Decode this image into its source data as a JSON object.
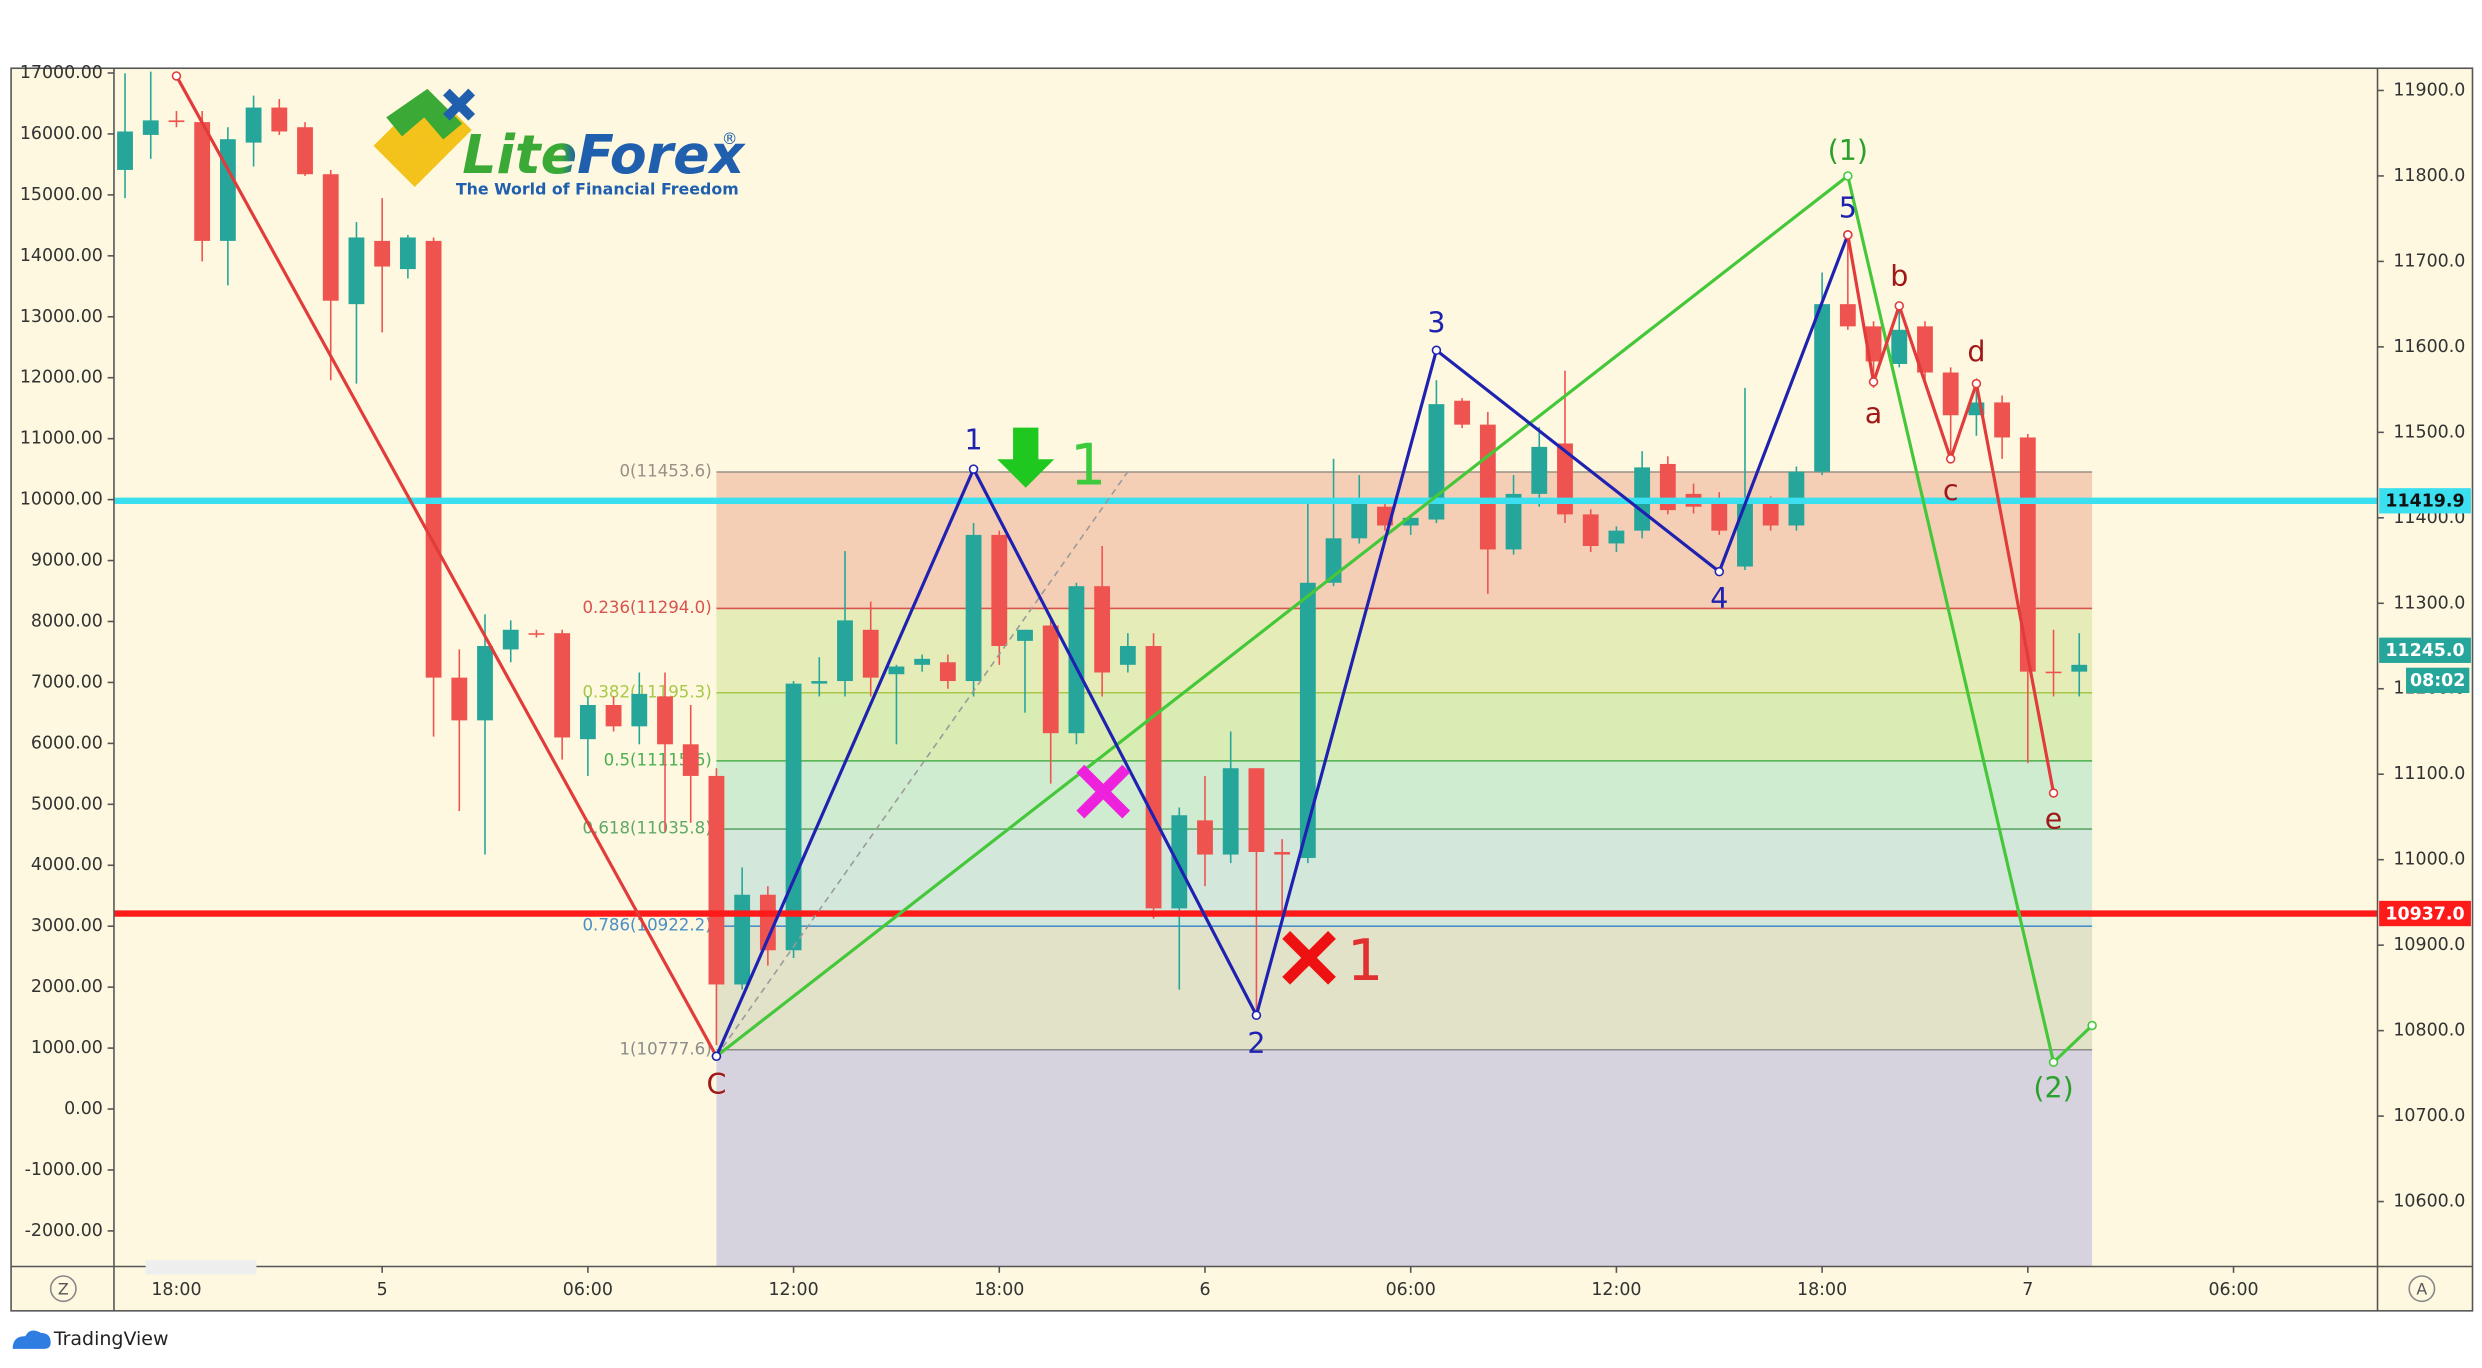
{
  "chart_data": {
    "type": "candlestick",
    "bull_color": "#26a69a",
    "bear_color": "#ef5350",
    "candles": {
      "open": [
        11807,
        11848,
        11865,
        11863,
        11724,
        11839,
        11880,
        11857,
        11802,
        11650,
        11724,
        11691,
        11724,
        11213,
        11163,
        11246,
        11265,
        11265,
        11141,
        11181,
        11156,
        11191,
        11135,
        11098,
        10854,
        10959,
        10894,
        11206,
        11209,
        11269,
        11217,
        11228,
        11231,
        11209,
        11380,
        11256,
        11274,
        11148,
        11320,
        11228,
        11250,
        10943,
        11046,
        11006,
        11107,
        11009,
        11002,
        11324,
        11376,
        11413,
        11391,
        11398,
        11537,
        11509,
        11363,
        11428,
        11487,
        11404,
        11370,
        11385,
        11463,
        11428,
        11417,
        11343,
        11417,
        11391,
        11454,
        11650,
        11624,
        11580,
        11624,
        11570,
        11520,
        11535,
        11494,
        11220,
        11220
      ],
      "high": [
        11920,
        11922,
        11876,
        11876,
        11857,
        11894,
        11890,
        11863,
        11807,
        11746,
        11774,
        11731,
        11728,
        11246,
        11287,
        11280,
        11269,
        11269,
        11191,
        11191,
        11219,
        11219,
        11181,
        11107,
        10991,
        10969,
        11209,
        11237,
        11361,
        11302,
        11228,
        11240,
        11240,
        11394,
        11385,
        11269,
        11283,
        11324,
        11367,
        11265,
        11265,
        11061,
        11098,
        11150,
        11107,
        11024,
        11417,
        11469,
        11450,
        11420,
        11404,
        11561,
        11540,
        11524,
        11450,
        11506,
        11572,
        11410,
        11390,
        11478,
        11472,
        11440,
        11430,
        11552,
        11425,
        11460,
        11687,
        11731,
        11630,
        11644,
        11630,
        11576,
        11552,
        11543,
        11498,
        11269,
        11265
      ],
      "low": [
        11774,
        11820,
        11857,
        11700,
        11672,
        11811,
        11848,
        11800,
        11561,
        11557,
        11617,
        11680,
        11144,
        11057,
        11006,
        11231,
        11260,
        11117,
        11098,
        11150,
        11135,
        11033,
        11043,
        10783,
        10848,
        10876,
        10885,
        11191,
        11191,
        11191,
        11135,
        11220,
        11200,
        11191,
        11228,
        11172,
        11089,
        11135,
        11191,
        11219,
        10931,
        10848,
        10969,
        10996,
        10820,
        10931,
        10996,
        11320,
        11370,
        11385,
        11380,
        11394,
        11505,
        11311,
        11357,
        11413,
        11394,
        11360,
        11360,
        11376,
        11404,
        11405,
        11380,
        11339,
        11385,
        11385,
        11450,
        11620,
        11552,
        11576,
        11560,
        11469,
        11496,
        11469,
        11113,
        11191,
        11191
      ],
      "close": [
        11852,
        11865,
        11863,
        11724,
        11843,
        11880,
        11852,
        11802,
        11654,
        11728,
        11694,
        11728,
        11213,
        11163,
        11250,
        11269,
        11265,
        11143,
        11181,
        11156,
        11194,
        11135,
        11098,
        10854,
        10959,
        10894,
        11206,
        11209,
        11280,
        11213,
        11226,
        11235,
        11209,
        11380,
        11250,
        11269,
        11148,
        11320,
        11219,
        11250,
        10943,
        11052,
        11006,
        11107,
        11009,
        11006,
        11324,
        11376,
        11417,
        11391,
        11400,
        11533,
        11509,
        11363,
        11428,
        11483,
        11404,
        11367,
        11385,
        11459,
        11409,
        11413,
        11385,
        11417,
        11391,
        11454,
        11650,
        11624,
        11583,
        11620,
        11570,
        11520,
        11535,
        11494,
        11220,
        11220,
        11228
      ]
    },
    "xlim": [
      -0.43,
      87.6
    ],
    "xticks": [
      {
        "value": 2,
        "label": "18:00"
      },
      {
        "value": 10,
        "label": "5"
      },
      {
        "value": 18,
        "label": "06:00"
      },
      {
        "value": 26,
        "label": "12:00"
      },
      {
        "value": 34,
        "label": "18:00"
      },
      {
        "value": 42,
        "label": "6"
      },
      {
        "value": 50,
        "label": "06:00"
      },
      {
        "value": 58,
        "label": "12:00"
      },
      {
        "value": 66,
        "label": "18:00"
      },
      {
        "value": 74,
        "label": "7"
      },
      {
        "value": 82,
        "label": "06:00"
      }
    ],
    "ylim": [
      10524,
      11926
    ],
    "yticks": [
      {
        "value": 10600,
        "label": "10600.0"
      },
      {
        "value": 10700,
        "label": "10700.0"
      },
      {
        "value": 10800,
        "label": "10800.0"
      },
      {
        "value": 10900,
        "label": "10900.0"
      },
      {
        "value": 11000,
        "label": "11000.0"
      },
      {
        "value": 11100,
        "label": "11100.0"
      },
      {
        "value": 11200,
        "label": "11200.0"
      },
      {
        "value": 11300,
        "label": "11300.0"
      },
      {
        "value": 11400,
        "label": "11400.0"
      },
      {
        "value": 11500,
        "label": "11500.0"
      },
      {
        "value": 11600,
        "label": "11600.0"
      },
      {
        "value": 11700,
        "label": "11700.0"
      },
      {
        "value": 11800,
        "label": "11800.0"
      },
      {
        "value": 11900,
        "label": "11900.0"
      }
    ],
    "y2lim": [
      -2584,
      17078
    ],
    "y2ticks": [
      {
        "value": -2000,
        "label": "-2000.00"
      },
      {
        "value": -1000,
        "label": "-1000.00"
      },
      {
        "value": 0,
        "label": "0.00"
      },
      {
        "value": 1000,
        "label": "1000.00"
      },
      {
        "value": 2000,
        "label": "2000.00"
      },
      {
        "value": 3000,
        "label": "3000.00"
      },
      {
        "value": 4000,
        "label": "4000.00"
      },
      {
        "value": 5000,
        "label": "5000.00"
      },
      {
        "value": 6000,
        "label": "6000.00"
      },
      {
        "value": 7000,
        "label": "7000.00"
      },
      {
        "value": 8000,
        "label": "8000.00"
      },
      {
        "value": 9000,
        "label": "9000.00"
      },
      {
        "value": 10000,
        "label": "10000.00"
      },
      {
        "value": 11000,
        "label": "11000.00"
      },
      {
        "value": 12000,
        "label": "12000.00"
      },
      {
        "value": 13000,
        "label": "13000.00"
      },
      {
        "value": 14000,
        "label": "14000.00"
      },
      {
        "value": 15000,
        "label": "15000.00"
      },
      {
        "value": 16000,
        "label": "16000.00"
      },
      {
        "value": 17000,
        "label": "17000.00"
      }
    ],
    "fib_x": [
      23,
      76.5
    ],
    "fib_levels": [
      {
        "value": 11453.6,
        "label": "0(11453.6)",
        "color": "#9a8f86",
        "fill": "#f5cfb5"
      },
      {
        "value": 11294.0,
        "label": "0.236(11294.0)",
        "color": "#d9534f",
        "fill": "#e6ecb7"
      },
      {
        "value": 11195.3,
        "label": "0.382(11195.3)",
        "color": "#a8c84a",
        "fill": "#d9ecb4"
      },
      {
        "value": 11115.6,
        "label": "0.5(11115.6)",
        "color": "#4caf50",
        "fill": "#cfecd0"
      },
      {
        "value": 11035.8,
        "label": "0.618(11035.8)",
        "color": "#5fa86a",
        "fill": "#d3e7da"
      },
      {
        "value": 10922.2,
        "label": "0.786(10922.2)",
        "color": "#4a90c8",
        "fill": "#e2e2c9"
      },
      {
        "value": 10777.6,
        "label": "1(10777.6)",
        "color": "#8c8c8c",
        "fill": "#d6d3df"
      }
    ],
    "hlines": [
      {
        "value": 11419.9,
        "label": "11419.9",
        "color": "#3ae0f0"
      },
      {
        "value": 10937.0,
        "label": "10937.0",
        "color": "#ff1a1a"
      }
    ],
    "last_price": {
      "value": 11245,
      "label": "11245.0",
      "color": "#26a69a"
    },
    "countdown": "08:02",
    "waves": [
      {
        "color": "#e23b3b",
        "x": [
          2,
          23
        ],
        "values": [
          11917,
          10770
        ]
      },
      {
        "color": "#9a9a9a",
        "dashed": true,
        "x": [
          23,
          39
        ],
        "values": [
          10770,
          11454
        ]
      },
      {
        "color": "#44c83a",
        "x": [
          23,
          67,
          75,
          76.5
        ],
        "values": [
          10770,
          11800,
          10763,
          10806
        ]
      },
      {
        "color": "#1f22b0",
        "x": [
          23,
          33,
          44,
          51,
          62,
          67
        ],
        "values": [
          10770,
          11457,
          10818,
          11596,
          11337,
          11731
        ]
      },
      {
        "color": "#e23b3b",
        "x": [
          67,
          68,
          69,
          71,
          72,
          75
        ],
        "values": [
          11731,
          11559,
          11648,
          11469,
          11557,
          11078
        ]
      }
    ],
    "wave_labels": [
      {
        "text": "1",
        "x": 33,
        "y": 11489,
        "color": "#1f22b0"
      },
      {
        "text": "2",
        "x": 44,
        "y": 10783,
        "color": "#1f22b0"
      },
      {
        "text": "3",
        "x": 51,
        "y": 11626,
        "color": "#1f22b0"
      },
      {
        "text": "4",
        "x": 62,
        "y": 11304,
        "color": "#1f22b0"
      },
      {
        "text": "5",
        "x": 67,
        "y": 11761,
        "color": "#1f22b0"
      },
      {
        "text": "C",
        "x": 23,
        "y": 10735,
        "color": "#a01818"
      },
      {
        "text": "a",
        "x": 68,
        "y": 11520,
        "color": "#a01818"
      },
      {
        "text": "b",
        "x": 69,
        "y": 11681,
        "color": "#a01818"
      },
      {
        "text": "c",
        "x": 71,
        "y": 11430,
        "color": "#a01818"
      },
      {
        "text": "d",
        "x": 72,
        "y": 11593,
        "color": "#a01818"
      },
      {
        "text": "e",
        "x": 75,
        "y": 11046,
        "color": "#a01818"
      },
      {
        "text": "(1)",
        "x": 67,
        "y": 11828,
        "color": "#2ca02c"
      },
      {
        "text": "(2)",
        "x": 75,
        "y": 10731,
        "color": "#2ca02c"
      }
    ],
    "marker_labels": [
      "1",
      "1"
    ],
    "logo": {
      "name": "LiteForex",
      "mark": "®",
      "tagline": "The World of Financial Freedom"
    },
    "scale_buttons": [
      "Z",
      "A"
    ],
    "footer": "TradingView"
  }
}
